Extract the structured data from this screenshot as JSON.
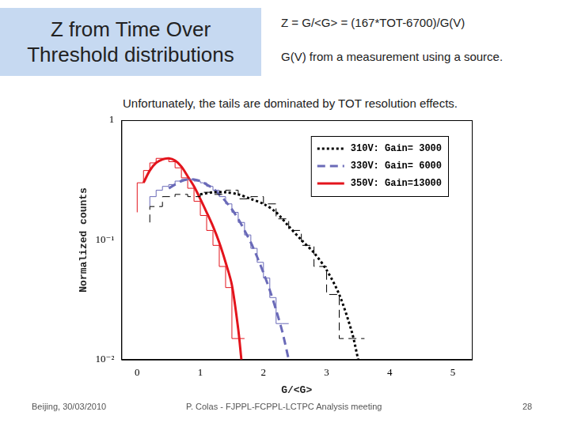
{
  "header": {
    "title": "Z from Time Over Threshold distributions",
    "formula": "Z = G/<G> = (167*TOT-6700)/G(V)",
    "note": "G(V) from a measurement using a source."
  },
  "caption": "Unfortunately, the tails are dominated by TOT resolution effects.",
  "footer": {
    "left": "Beijing, 30/03/2010",
    "center": "P. Colas  -  FJPPL-FCPPL-LCTPC Analysis meeting",
    "page": "28"
  },
  "chart_data": {
    "type": "line",
    "x_label": "G/<G>",
    "y_label": "Normalized counts",
    "log": "y",
    "grid": false,
    "legend": "upper right",
    "xlim": [
      -0.25,
      5.3
    ],
    "xticks": [
      0,
      1,
      2,
      3,
      4,
      5
    ],
    "ylim": [
      0.01,
      1
    ],
    "yticks": [
      {
        "value": 0.01,
        "label": "10⁻²"
      },
      {
        "value": 0.1,
        "label": "10⁻¹"
      },
      1
    ],
    "series": [
      {
        "name": "310V: Gain= 3000",
        "color": "#000000",
        "line_style": "dotted",
        "x": [
          1.0,
          1.2,
          1.4,
          1.6,
          1.8,
          2.0,
          2.2,
          2.4,
          2.6,
          2.8,
          3.0,
          3.2,
          3.4,
          3.5
        ],
        "values": [
          0.24,
          0.25,
          0.25,
          0.24,
          0.22,
          0.2,
          0.17,
          0.13,
          0.1,
          0.078,
          0.056,
          0.035,
          0.017,
          0.01
        ],
        "histogram": {
          "line_style": "dashed",
          "bins": [
            0.2,
            0.4,
            0.6,
            0.8,
            1.0,
            1.2,
            1.4,
            1.6,
            1.8,
            2.0,
            2.2,
            2.4,
            2.6,
            2.8,
            3.0,
            3.2,
            3.4,
            3.6
          ],
          "counts": [
            0.14,
            0.19,
            0.23,
            0.24,
            0.23,
            0.25,
            0.24,
            0.26,
            0.22,
            0.23,
            0.2,
            0.15,
            0.12,
            0.09,
            0.06,
            0.035,
            0.015
          ]
        }
      },
      {
        "name": "330V: Gain= 6000",
        "color": "#6a6ab8",
        "line_style": "dashed",
        "x": [
          0.5,
          0.6,
          0.7,
          0.8,
          0.9,
          1.0,
          1.1,
          1.2,
          1.3,
          1.4,
          1.5,
          1.6,
          1.7,
          1.8,
          1.9,
          2.0,
          2.1,
          2.2,
          2.3,
          2.4
        ],
        "values": [
          0.27,
          0.29,
          0.31,
          0.32,
          0.32,
          0.31,
          0.29,
          0.27,
          0.24,
          0.21,
          0.18,
          0.15,
          0.12,
          0.095,
          0.072,
          0.053,
          0.038,
          0.026,
          0.017,
          0.01
        ],
        "histogram": {
          "line_style": "solid",
          "bins": [
            0.2,
            0.3,
            0.4,
            0.5,
            0.6,
            0.7,
            0.8,
            0.9,
            1.0,
            1.1,
            1.2,
            1.3,
            1.4,
            1.5,
            1.6,
            1.7,
            1.8,
            1.9,
            2.0,
            2.1,
            2.2,
            2.3,
            2.4
          ],
          "counts": [
            0.19,
            0.23,
            0.26,
            0.28,
            0.29,
            0.31,
            0.32,
            0.32,
            0.31,
            0.3,
            0.28,
            0.26,
            0.23,
            0.2,
            0.17,
            0.14,
            0.11,
            0.085,
            0.065,
            0.048,
            0.033,
            0.02
          ]
        }
      },
      {
        "name": "350V: Gain=13000",
        "color": "#e3141c",
        "line_style": "solid",
        "x": [
          0.1,
          0.2,
          0.3,
          0.4,
          0.5,
          0.6,
          0.7,
          0.8,
          0.9,
          1.0,
          1.1,
          1.2,
          1.3,
          1.4,
          1.5,
          1.6,
          1.65
        ],
        "values": [
          0.3,
          0.38,
          0.44,
          0.47,
          0.48,
          0.46,
          0.41,
          0.34,
          0.28,
          0.22,
          0.17,
          0.13,
          0.095,
          0.065,
          0.042,
          0.018,
          0.01
        ],
        "histogram": {
          "line_style": "solid",
          "bins": [
            0.0,
            0.1,
            0.2,
            0.3,
            0.4,
            0.5,
            0.6,
            0.7,
            0.8,
            0.9,
            1.0,
            1.1,
            1.2,
            1.3,
            1.4,
            1.5,
            1.6,
            1.7
          ],
          "counts": [
            0.17,
            0.3,
            0.38,
            0.44,
            0.48,
            0.48,
            0.45,
            0.4,
            0.33,
            0.27,
            0.21,
            0.16,
            0.12,
            0.09,
            0.06,
            0.04,
            0.015
          ]
        }
      }
    ]
  }
}
